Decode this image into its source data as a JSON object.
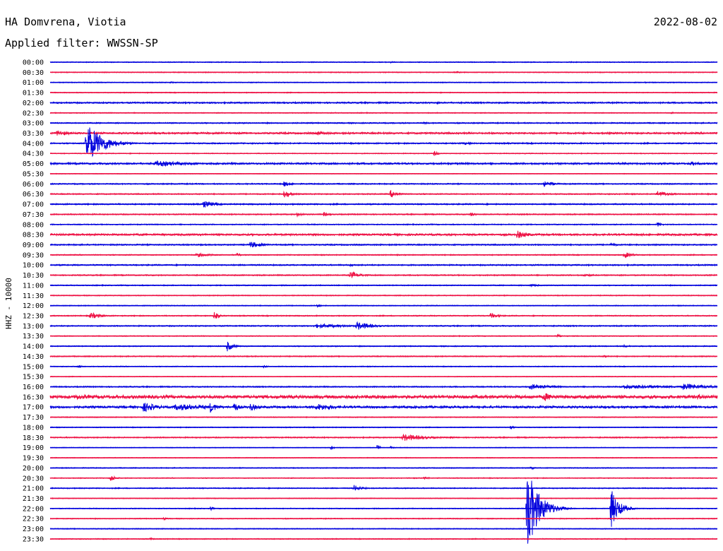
{
  "header": {
    "station": "HA Domvrena, Viotia",
    "date": "2022-08-02",
    "filter": "Applied filter: WWSSN-SP"
  },
  "chart_data": {
    "type": "line",
    "title": "HA Domvrena, Viotia",
    "subtitle": "Applied filter: WWSSN-SP",
    "date": "2022-08-02",
    "ylabel": "HHZ - 10000",
    "xlabel": "",
    "grid": false,
    "trace_colors": [
      "#0000dd",
      "#ee1144"
    ],
    "rows": [
      {
        "label": "00:00",
        "noise": 0.6,
        "events": [
          {
            "x": 0.51,
            "amp": 1.5,
            "w": 0.006
          },
          {
            "x": 0.78,
            "amp": 1.5,
            "w": 0.006
          }
        ]
      },
      {
        "label": "00:30",
        "noise": 0.6,
        "events": [
          {
            "x": 0.61,
            "amp": 1.5,
            "w": 0.006
          }
        ]
      },
      {
        "label": "01:00",
        "noise": 0.6,
        "events": [
          {
            "x": 0.18,
            "amp": 1.5,
            "w": 0.006
          },
          {
            "x": 0.89,
            "amp": 1.2,
            "w": 0.006
          }
        ]
      },
      {
        "label": "01:30",
        "noise": 0.6,
        "events": [
          {
            "x": 0.69,
            "amp": 1.5,
            "w": 0.006
          }
        ]
      },
      {
        "label": "02:00",
        "noise": 1.0,
        "events": [
          {
            "x": 0.58,
            "amp": 2,
            "w": 0.006
          },
          {
            "x": 0.77,
            "amp": 1.5,
            "w": 0.006
          }
        ]
      },
      {
        "label": "02:30",
        "noise": 0.6,
        "events": [
          {
            "x": 0.93,
            "amp": 1.5,
            "w": 0.006
          }
        ]
      },
      {
        "label": "03:00",
        "noise": 0.8,
        "events": [
          {
            "x": 0.56,
            "amp": 2,
            "w": 0.006
          },
          {
            "x": 0.7,
            "amp": 2,
            "w": 0.006
          }
        ]
      },
      {
        "label": "03:30",
        "noise": 1.2,
        "events": [
          {
            "x": 0.01,
            "amp": 4,
            "w": 0.02
          },
          {
            "x": 0.4,
            "amp": 3,
            "w": 0.02
          }
        ]
      },
      {
        "label": "04:00",
        "noise": 0.9,
        "events": [
          {
            "x": 0.055,
            "amp": 30,
            "w": 0.02
          },
          {
            "x": 0.62,
            "amp": 2,
            "w": 0.02
          }
        ]
      },
      {
        "label": "04:30",
        "noise": 0.6,
        "events": [
          {
            "x": 0.575,
            "amp": 4,
            "w": 0.006
          }
        ]
      },
      {
        "label": "05:00",
        "noise": 1.2,
        "events": [
          {
            "x": 0.16,
            "amp": 4,
            "w": 0.05
          },
          {
            "x": 0.96,
            "amp": 3,
            "w": 0.02
          }
        ]
      },
      {
        "label": "05:30",
        "noise": 0.4,
        "events": []
      },
      {
        "label": "06:00",
        "noise": 0.8,
        "events": [
          {
            "x": 0.35,
            "amp": 4,
            "w": 0.01
          },
          {
            "x": 0.74,
            "amp": 4,
            "w": 0.015
          }
        ]
      },
      {
        "label": "06:30",
        "noise": 0.8,
        "events": [
          {
            "x": 0.35,
            "amp": 6,
            "w": 0.01
          },
          {
            "x": 0.51,
            "amp": 6,
            "w": 0.01
          },
          {
            "x": 0.91,
            "amp": 5,
            "w": 0.015
          }
        ]
      },
      {
        "label": "07:00",
        "noise": 0.9,
        "events": [
          {
            "x": 0.23,
            "amp": 5,
            "w": 0.015
          }
        ]
      },
      {
        "label": "07:30",
        "noise": 0.8,
        "events": [
          {
            "x": 0.37,
            "amp": 3,
            "w": 0.01
          },
          {
            "x": 0.41,
            "amp": 3,
            "w": 0.01
          },
          {
            "x": 0.63,
            "amp": 4,
            "w": 0.006
          }
        ]
      },
      {
        "label": "08:00",
        "noise": 0.7,
        "events": [
          {
            "x": 0.91,
            "amp": 4,
            "w": 0.006
          }
        ]
      },
      {
        "label": "08:30",
        "noise": 1.3,
        "events": [
          {
            "x": 0.7,
            "amp": 6,
            "w": 0.015
          }
        ]
      },
      {
        "label": "09:00",
        "noise": 0.9,
        "events": [
          {
            "x": 0.3,
            "amp": 5,
            "w": 0.015
          },
          {
            "x": 0.84,
            "amp": 3,
            "w": 0.01
          }
        ]
      },
      {
        "label": "09:30",
        "noise": 0.7,
        "events": [
          {
            "x": 0.22,
            "amp": 3,
            "w": 0.02
          },
          {
            "x": 0.28,
            "amp": 3,
            "w": 0.006
          },
          {
            "x": 0.86,
            "amp": 5,
            "w": 0.01
          }
        ]
      },
      {
        "label": "10:00",
        "noise": 0.9,
        "events": [
          {
            "x": 0.45,
            "amp": 2,
            "w": 0.01
          }
        ]
      },
      {
        "label": "10:30",
        "noise": 0.8,
        "events": [
          {
            "x": 0.45,
            "amp": 5,
            "w": 0.015
          },
          {
            "x": 0.8,
            "amp": 2,
            "w": 0.02
          }
        ]
      },
      {
        "label": "11:00",
        "noise": 0.7,
        "events": [
          {
            "x": 0.72,
            "amp": 2,
            "w": 0.015
          }
        ]
      },
      {
        "label": "11:30",
        "noise": 0.6,
        "events": []
      },
      {
        "label": "12:00",
        "noise": 0.6,
        "events": [
          {
            "x": 0.4,
            "amp": 3,
            "w": 0.006
          }
        ]
      },
      {
        "label": "12:30",
        "noise": 0.7,
        "events": [
          {
            "x": 0.06,
            "amp": 5,
            "w": 0.015
          },
          {
            "x": 0.245,
            "amp": 9,
            "w": 0.006
          },
          {
            "x": 0.66,
            "amp": 4,
            "w": 0.012
          }
        ]
      },
      {
        "label": "13:00",
        "noise": 0.8,
        "events": [
          {
            "x": 0.4,
            "amp": 3,
            "w": 0.05
          },
          {
            "x": 0.46,
            "amp": 6,
            "w": 0.02
          }
        ]
      },
      {
        "label": "13:30",
        "noise": 0.6,
        "events": [
          {
            "x": 0.76,
            "amp": 3,
            "w": 0.006
          }
        ]
      },
      {
        "label": "14:00",
        "noise": 0.7,
        "events": [
          {
            "x": 0.265,
            "amp": 8,
            "w": 0.008
          },
          {
            "x": 0.86,
            "amp": 2,
            "w": 0.01
          }
        ]
      },
      {
        "label": "14:30",
        "noise": 0.7,
        "events": [
          {
            "x": 0.83,
            "amp": 3,
            "w": 0.006
          }
        ]
      },
      {
        "label": "15:00",
        "noise": 0.6,
        "events": [
          {
            "x": 0.04,
            "amp": 3,
            "w": 0.006
          },
          {
            "x": 0.32,
            "amp": 2,
            "w": 0.006
          }
        ]
      },
      {
        "label": "15:30",
        "noise": 0.5,
        "events": []
      },
      {
        "label": "16:00",
        "noise": 0.8,
        "events": [
          {
            "x": 0.72,
            "amp": 4,
            "w": 0.03
          },
          {
            "x": 0.86,
            "amp": 3,
            "w": 0.08
          },
          {
            "x": 0.95,
            "amp": 5,
            "w": 0.03
          }
        ]
      },
      {
        "label": "16:30",
        "noise": 2.2,
        "events": [
          {
            "x": 0.04,
            "amp": 4,
            "w": 0.03
          },
          {
            "x": 0.74,
            "amp": 6,
            "w": 0.02
          },
          {
            "x": 0.97,
            "amp": 4,
            "w": 0.02
          }
        ]
      },
      {
        "label": "17:00",
        "noise": 1.5,
        "events": [
          {
            "x": 0.14,
            "amp": 7,
            "w": 0.02
          },
          {
            "x": 0.19,
            "amp": 5,
            "w": 0.05
          },
          {
            "x": 0.24,
            "amp": 8,
            "w": 0.01
          },
          {
            "x": 0.275,
            "amp": 7,
            "w": 0.008
          },
          {
            "x": 0.3,
            "amp": 6,
            "w": 0.01
          },
          {
            "x": 0.4,
            "amp": 5,
            "w": 0.03
          }
        ]
      },
      {
        "label": "17:30",
        "noise": 0.6,
        "events": []
      },
      {
        "label": "18:00",
        "noise": 0.6,
        "events": [
          {
            "x": 0.69,
            "amp": 3,
            "w": 0.006
          }
        ]
      },
      {
        "label": "18:30",
        "noise": 0.8,
        "events": [
          {
            "x": 0.53,
            "amp": 5,
            "w": 0.03
          },
          {
            "x": 0.6,
            "amp": 2,
            "w": 0.01
          }
        ]
      },
      {
        "label": "19:00",
        "noise": 0.5,
        "events": [
          {
            "x": 0.42,
            "amp": 4,
            "w": 0.004
          },
          {
            "x": 0.49,
            "amp": 4,
            "w": 0.004
          },
          {
            "x": 0.51,
            "amp": 2,
            "w": 0.006
          }
        ]
      },
      {
        "label": "19:30",
        "noise": 0.5,
        "events": []
      },
      {
        "label": "20:00",
        "noise": 0.6,
        "events": [
          {
            "x": 0.72,
            "amp": 3,
            "w": 0.006
          }
        ]
      },
      {
        "label": "20:30",
        "noise": 0.6,
        "events": [
          {
            "x": 0.09,
            "amp": 6,
            "w": 0.006
          },
          {
            "x": 0.56,
            "amp": 3,
            "w": 0.006
          }
        ]
      },
      {
        "label": "21:00",
        "noise": 0.7,
        "events": [
          {
            "x": 0.455,
            "amp": 5,
            "w": 0.01
          }
        ]
      },
      {
        "label": "21:30",
        "noise": 0.5,
        "events": []
      },
      {
        "label": "22:00",
        "noise": 0.6,
        "events": [
          {
            "x": 0.24,
            "amp": 3,
            "w": 0.004
          },
          {
            "x": 0.715,
            "amp": 60,
            "w": 0.015
          },
          {
            "x": 0.84,
            "amp": 30,
            "w": 0.01
          }
        ]
      },
      {
        "label": "22:30",
        "noise": 0.6,
        "events": [
          {
            "x": 0.17,
            "amp": 2,
            "w": 0.006
          }
        ]
      },
      {
        "label": "23:00",
        "noise": 0.6,
        "events": []
      },
      {
        "label": "23:30",
        "noise": 0.6,
        "events": [
          {
            "x": 0.15,
            "amp": 2,
            "w": 0.006
          }
        ]
      }
    ]
  }
}
